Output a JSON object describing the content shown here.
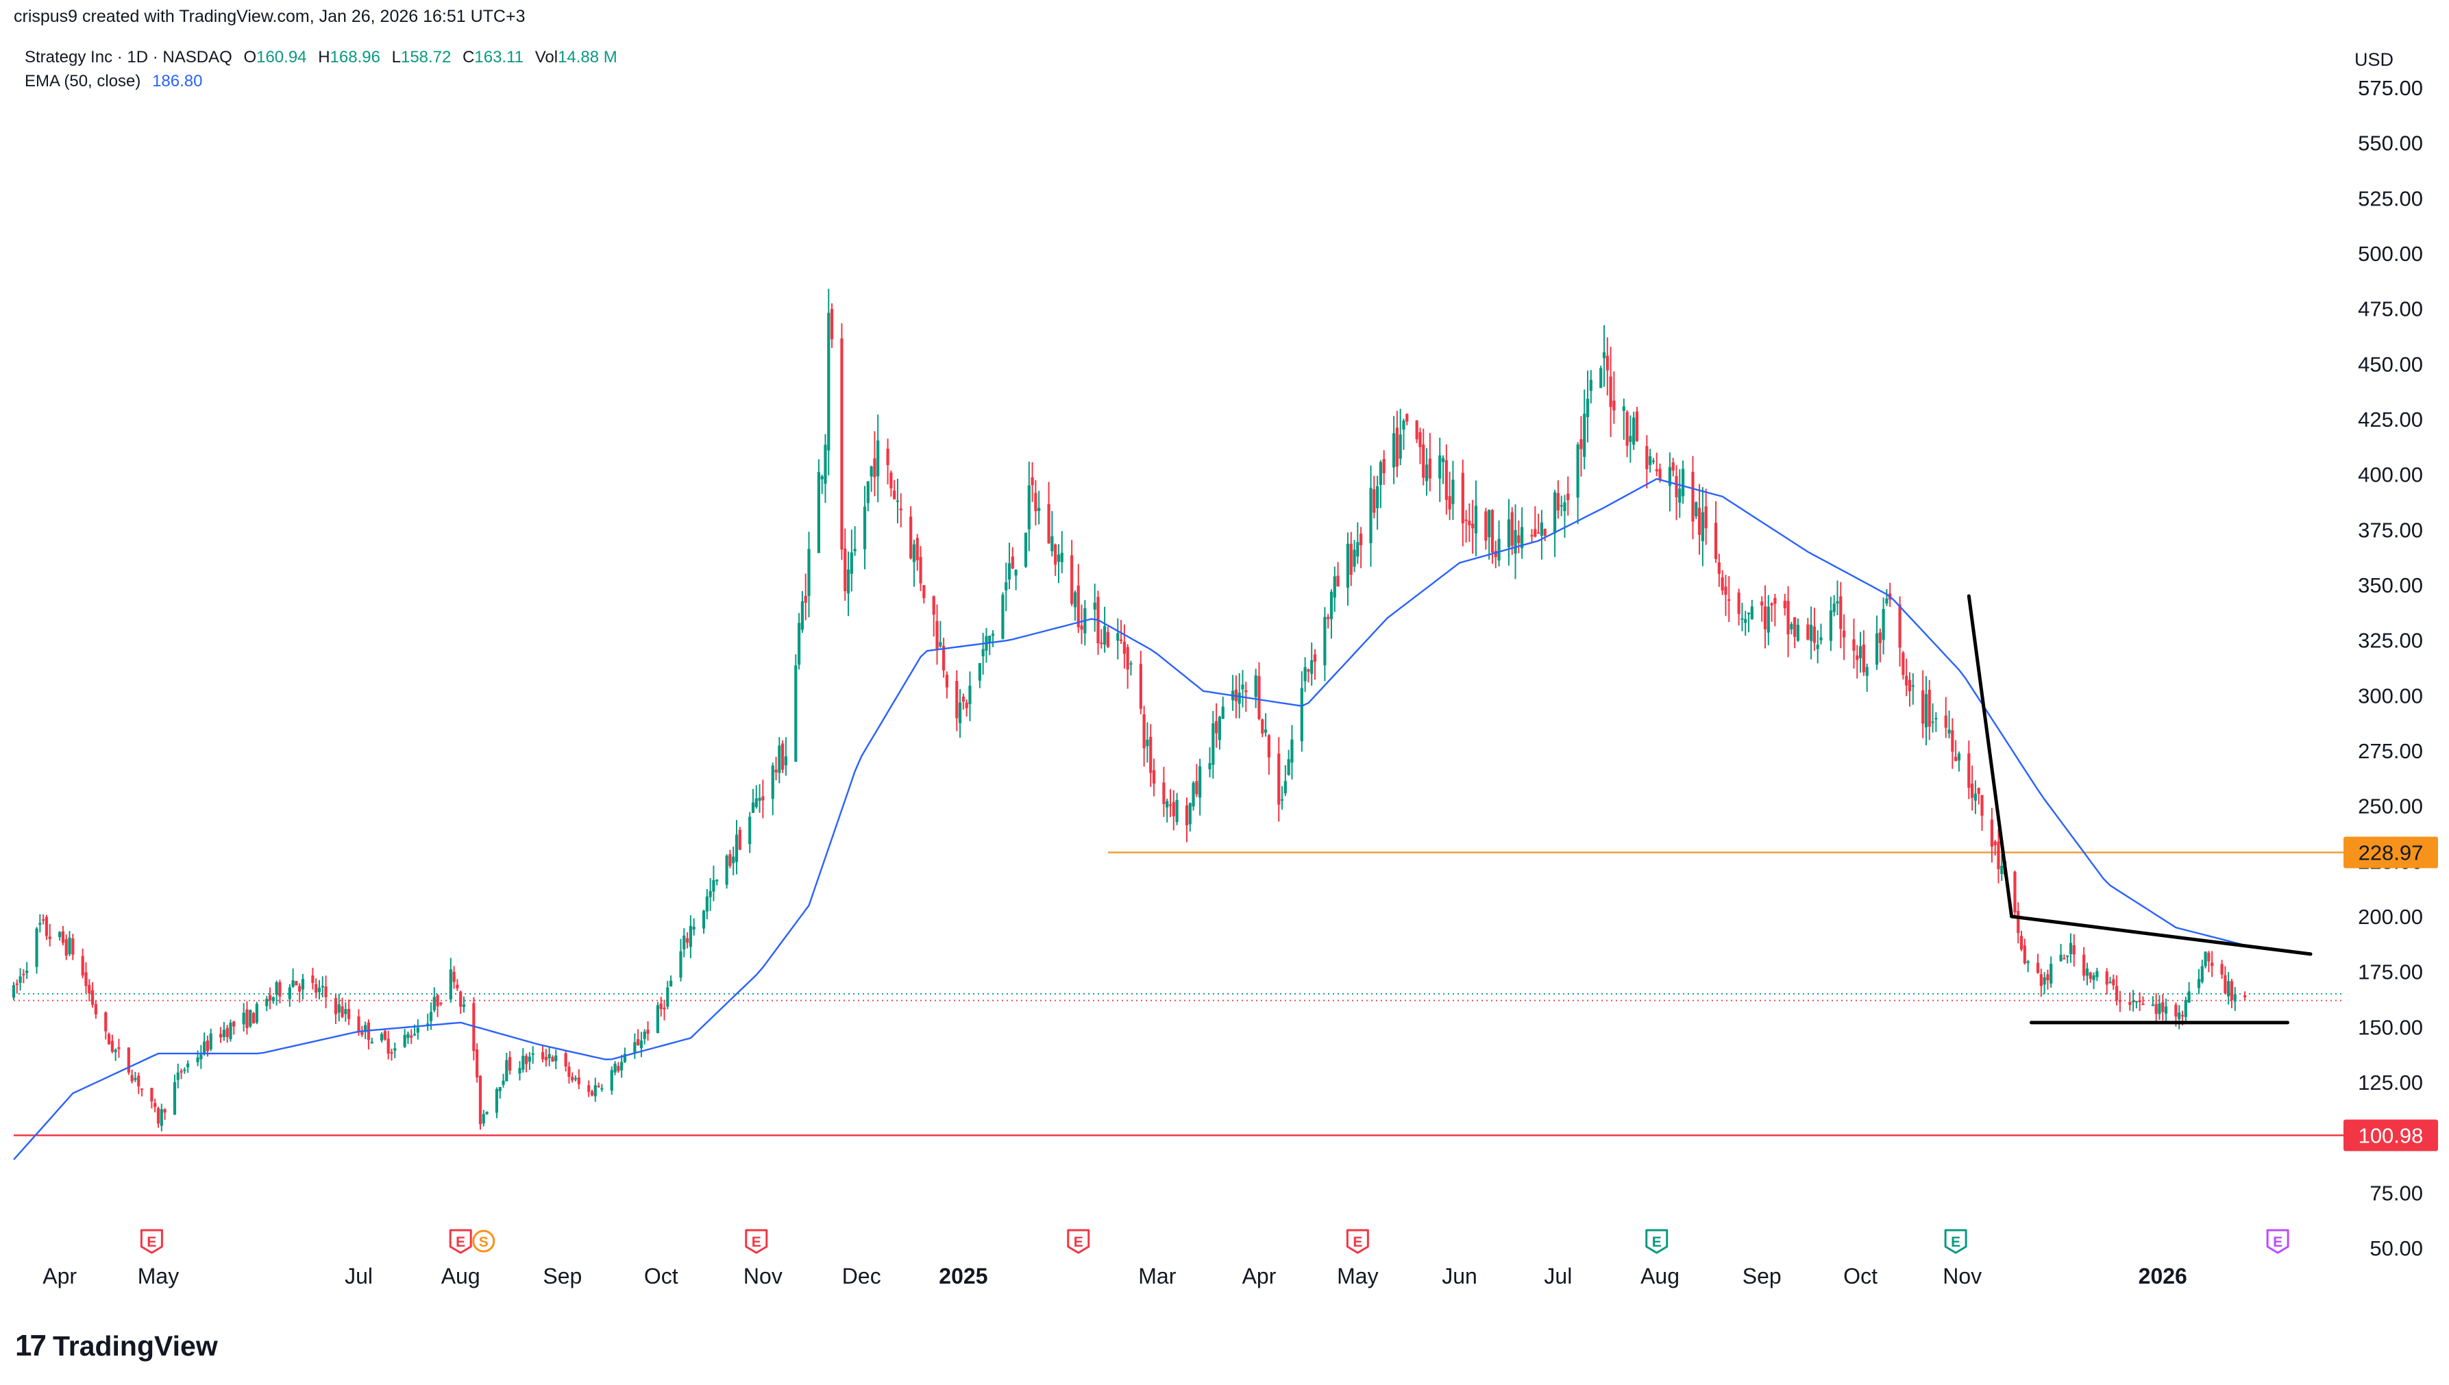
{
  "header": {
    "attribution": "crispus9 created with TradingView.com, Jan 26, 2026 16:51 UTC+3"
  },
  "legend": {
    "symbol": "Strategy Inc · 1D · NASDAQ",
    "open_label": "O",
    "open": "160.94",
    "high_label": "H",
    "high": "168.96",
    "low_label": "L",
    "low": "158.72",
    "close_label": "C",
    "close": "163.11",
    "vol_label": "Vol",
    "vol": "14.88 M",
    "ema_label": "EMA (50, close)",
    "ema_value": "186.80"
  },
  "footer": {
    "brand": "TradingView",
    "logo_mark": "17"
  },
  "colors": {
    "up": "#089981",
    "down": "#f23645",
    "ema": "#2962ff",
    "support": "#e8a23b",
    "low_line": "#f23645",
    "trendline": "#000000",
    "badge_orange": "#f7931a",
    "badge_red": "#f23645",
    "earnings_red": "#f23645",
    "earnings_green": "#089981",
    "earnings_purple": "#b84dff",
    "split_orange": "#f7931a"
  },
  "chart_data": {
    "type": "candlestick",
    "title": "Strategy Inc · 1D · NASDAQ",
    "currency": "USD",
    "yaxis": {
      "ticks": [
        50,
        75,
        100,
        125,
        150,
        175,
        200,
        225,
        250,
        275,
        300,
        325,
        350,
        375,
        400,
        425,
        450,
        475,
        500,
        525,
        550,
        575
      ],
      "tick_labels": [
        "50.00",
        "75.00",
        "100.00",
        "125.00",
        "150.00",
        "175.00",
        "200.00",
        "225.00",
        "250.00",
        "275.00",
        "300.00",
        "325.00",
        "350.00",
        "375.00",
        "400.00",
        "425.00",
        "450.00",
        "475.00",
        "500.00",
        "525.00",
        "550.00",
        "575.00"
      ],
      "range": [
        50,
        580
      ],
      "scale": "linear",
      "position": "right"
    },
    "xaxis": {
      "ticks": [
        {
          "label": "Apr",
          "date": "2024-04-01"
        },
        {
          "label": "May",
          "date": "2024-05-01"
        },
        {
          "label": "Jul",
          "date": "2024-07-01"
        },
        {
          "label": "Aug",
          "date": "2024-08-01"
        },
        {
          "label": "Sep",
          "date": "2024-09-01"
        },
        {
          "label": "Oct",
          "date": "2024-10-01"
        },
        {
          "label": "Nov",
          "date": "2024-11-01"
        },
        {
          "label": "Dec",
          "date": "2024-12-01"
        },
        {
          "label": "2025",
          "date": "2025-01-01",
          "bold": true
        },
        {
          "label": "Mar",
          "date": "2025-03-01"
        },
        {
          "label": "Apr",
          "date": "2025-04-01"
        },
        {
          "label": "May",
          "date": "2025-05-01"
        },
        {
          "label": "Jun",
          "date": "2025-06-01"
        },
        {
          "label": "Jul",
          "date": "2025-07-01"
        },
        {
          "label": "Aug",
          "date": "2025-08-01"
        },
        {
          "label": "Sep",
          "date": "2025-09-01"
        },
        {
          "label": "Oct",
          "date": "2025-10-01"
        },
        {
          "label": "Nov",
          "date": "2025-11-01"
        },
        {
          "label": "2026",
          "date": "2026-01-01",
          "bold": true
        }
      ],
      "range": [
        "2024-03-18",
        "2026-02-25"
      ]
    },
    "price_anchors": [
      [
        "2024-03-18",
        165
      ],
      [
        "2024-03-26",
        195
      ],
      [
        "2024-04-05",
        185
      ],
      [
        "2024-04-15",
        145
      ],
      [
        "2024-04-25",
        125
      ],
      [
        "2024-05-01",
        108
      ],
      [
        "2024-05-08",
        130
      ],
      [
        "2024-05-20",
        148
      ],
      [
        "2024-05-30",
        155
      ],
      [
        "2024-06-10",
        172
      ],
      [
        "2024-06-20",
        165
      ],
      [
        "2024-07-01",
        150
      ],
      [
        "2024-07-12",
        140
      ],
      [
        "2024-07-22",
        155
      ],
      [
        "2024-07-30",
        175
      ],
      [
        "2024-08-05",
        140
      ],
      [
        "2024-08-07",
        108
      ],
      [
        "2024-08-15",
        132
      ],
      [
        "2024-08-28",
        138
      ],
      [
        "2024-09-05",
        125
      ],
      [
        "2024-09-09",
        120
      ],
      [
        "2024-09-20",
        135
      ],
      [
        "2024-10-01",
        158
      ],
      [
        "2024-10-10",
        195
      ],
      [
        "2024-10-20",
        220
      ],
      [
        "2024-10-31",
        255
      ],
      [
        "2024-11-08",
        275
      ],
      [
        "2024-11-13",
        340
      ],
      [
        "2024-11-20",
        420
      ],
      [
        "2024-11-21",
        480
      ],
      [
        "2024-11-26",
        340
      ],
      [
        "2024-12-05",
        410
      ],
      [
        "2024-12-12",
        390
      ],
      [
        "2024-12-20",
        350
      ],
      [
        "2024-12-31",
        290
      ],
      [
        "2025-01-10",
        330
      ],
      [
        "2025-01-22",
        390
      ],
      [
        "2025-02-05",
        340
      ],
      [
        "2025-02-20",
        320
      ],
      [
        "2025-02-28",
        260
      ],
      [
        "2025-03-10",
        245
      ],
      [
        "2025-03-20",
        290
      ],
      [
        "2025-03-31",
        305
      ],
      [
        "2025-04-07",
        250
      ],
      [
        "2025-04-15",
        310
      ],
      [
        "2025-04-25",
        350
      ],
      [
        "2025-05-08",
        395
      ],
      [
        "2025-05-16",
        420
      ],
      [
        "2025-05-28",
        395
      ],
      [
        "2025-06-05",
        380
      ],
      [
        "2025-06-15",
        370
      ],
      [
        "2025-06-25",
        370
      ],
      [
        "2025-07-05",
        400
      ],
      [
        "2025-07-14",
        450
      ],
      [
        "2025-07-20",
        430
      ],
      [
        "2025-07-31",
        400
      ],
      [
        "2025-08-08",
        395
      ],
      [
        "2025-08-14",
        375
      ],
      [
        "2025-08-25",
        340
      ],
      [
        "2025-09-05",
        335
      ],
      [
        "2025-09-15",
        325
      ],
      [
        "2025-09-25",
        335
      ],
      [
        "2025-10-03",
        310
      ],
      [
        "2025-10-10",
        340
      ],
      [
        "2025-10-15",
        300
      ],
      [
        "2025-10-28",
        285
      ],
      [
        "2025-11-05",
        255
      ],
      [
        "2025-11-14",
        215
      ],
      [
        "2025-11-20",
        180
      ],
      [
        "2025-11-26",
        170
      ],
      [
        "2025-12-03",
        185
      ],
      [
        "2025-12-10",
        175
      ],
      [
        "2025-12-18",
        165
      ],
      [
        "2025-12-25",
        160
      ],
      [
        "2026-01-02",
        157
      ],
      [
        "2026-01-08",
        160
      ],
      [
        "2026-01-14",
        182
      ],
      [
        "2026-01-20",
        168
      ],
      [
        "2026-01-26",
        163
      ]
    ],
    "ema_anchors": [
      [
        "2024-03-18",
        90
      ],
      [
        "2024-04-05",
        120
      ],
      [
        "2024-05-01",
        138
      ],
      [
        "2024-06-01",
        138
      ],
      [
        "2024-07-01",
        148
      ],
      [
        "2024-08-01",
        152
      ],
      [
        "2024-08-25",
        142
      ],
      [
        "2024-09-15",
        135
      ],
      [
        "2024-10-10",
        145
      ],
      [
        "2024-10-31",
        175
      ],
      [
        "2024-11-15",
        205
      ],
      [
        "2024-11-30",
        270
      ],
      [
        "2024-12-20",
        320
      ],
      [
        "2025-01-15",
        325
      ],
      [
        "2025-02-10",
        335
      ],
      [
        "2025-02-28",
        320
      ],
      [
        "2025-03-15",
        302
      ],
      [
        "2025-04-15",
        295
      ],
      [
        "2025-05-10",
        335
      ],
      [
        "2025-06-01",
        360
      ],
      [
        "2025-06-25",
        370
      ],
      [
        "2025-07-15",
        385
      ],
      [
        "2025-07-31",
        398
      ],
      [
        "2025-08-20",
        390
      ],
      [
        "2025-09-15",
        365
      ],
      [
        "2025-10-10",
        345
      ],
      [
        "2025-11-01",
        310
      ],
      [
        "2025-11-25",
        255
      ],
      [
        "2025-12-15",
        215
      ],
      [
        "2026-01-05",
        195
      ],
      [
        "2026-01-26",
        187
      ]
    ],
    "price_lines": [
      {
        "name": "support",
        "value": 228.97,
        "label": "228.97",
        "from_date": "2025-02-14",
        "badge_color": "#f7931a"
      },
      {
        "name": "low",
        "value": 100.98,
        "label": "100.98",
        "from_date": "2024-03-18",
        "badge_color": "#f23645"
      }
    ],
    "dotted_lines": [
      {
        "name": "close-line-a",
        "value": 165
      },
      {
        "name": "close-line-b",
        "value": 162
      }
    ],
    "drawings": [
      {
        "name": "steep-downtrend-line",
        "from": [
          "2025-11-03",
          345
        ],
        "to": [
          "2025-11-16",
          200
        ]
      },
      {
        "name": "falling-wedge-upper-line",
        "from": [
          "2025-11-16",
          200
        ],
        "to": [
          "2026-02-15",
          183
        ]
      },
      {
        "name": "wedge-base-line",
        "from": [
          "2025-11-22",
          152
        ],
        "to": [
          "2026-02-08",
          152
        ]
      }
    ],
    "events": [
      {
        "type": "earnings",
        "label": "E",
        "date": "2024-04-29",
        "color": "#f23645"
      },
      {
        "type": "earnings",
        "label": "E",
        "date": "2024-08-01",
        "color": "#f23645"
      },
      {
        "type": "split",
        "label": "S",
        "date": "2024-08-08",
        "color": "#f7931a"
      },
      {
        "type": "earnings",
        "label": "E",
        "date": "2024-10-30",
        "color": "#f23645"
      },
      {
        "type": "earnings",
        "label": "E",
        "date": "2025-02-05",
        "color": "#f23645"
      },
      {
        "type": "earnings",
        "label": "E",
        "date": "2025-05-01",
        "color": "#f23645"
      },
      {
        "type": "earnings",
        "label": "E",
        "date": "2025-07-31",
        "color": "#089981"
      },
      {
        "type": "earnings",
        "label": "E",
        "date": "2025-10-30",
        "color": "#089981"
      },
      {
        "type": "earnings",
        "label": "E",
        "date": "2026-02-05",
        "color": "#b84dff"
      }
    ],
    "last_close": 163.11
  }
}
